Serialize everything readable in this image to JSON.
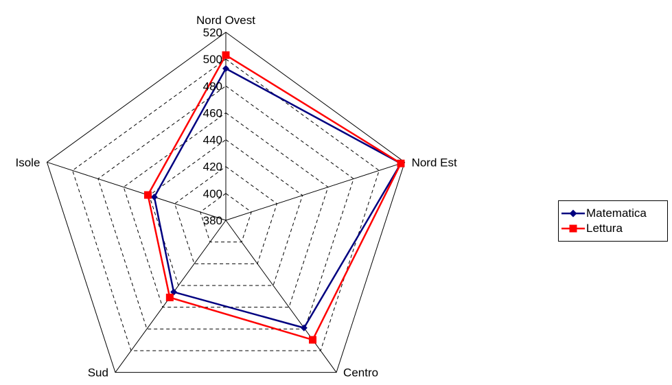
{
  "chart_data": {
    "type": "radar",
    "categories": [
      "Nord Ovest",
      "Nord Est",
      "Centro",
      "Sud",
      "Isole"
    ],
    "r_ticks": [
      380,
      400,
      420,
      440,
      460,
      480,
      500,
      520
    ],
    "r_range": [
      380,
      520
    ],
    "series": [
      {
        "name": "Matematica",
        "values": [
          493,
          517,
          479,
          446,
          436
        ],
        "color": "#000080",
        "marker": "diamond"
      },
      {
        "name": "Lettura",
        "values": [
          503,
          517,
          490,
          451,
          441
        ],
        "color": "#ff0000",
        "marker": "square"
      }
    ],
    "grid": "dashed",
    "legend_position": "right"
  }
}
